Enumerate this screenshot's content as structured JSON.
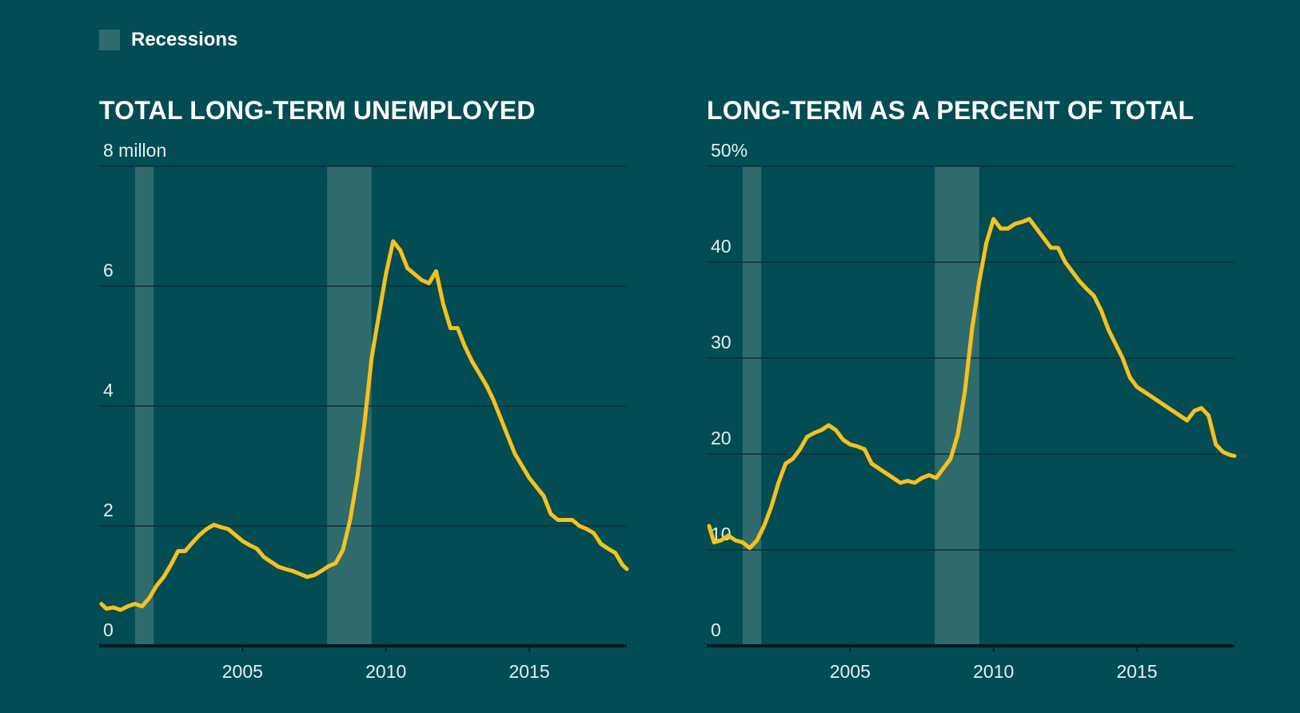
{
  "legend": {
    "label": "Recessions",
    "color": "#2f6b6d"
  },
  "colors": {
    "background": "#024c54",
    "line": "#f7c11c",
    "grid": "#0e2f33",
    "baseline": "#031a1c",
    "recession": "#2f6b6d"
  },
  "chart_data": [
    {
      "type": "line",
      "title": "TOTAL LONG-TERM UNEMPLOYED",
      "ylim": [
        0,
        8
      ],
      "xlim": [
        2000.0,
        2018.4
      ],
      "yticks": [
        0,
        2,
        4,
        6,
        8
      ],
      "ytick_labels": [
        "0",
        "2",
        "4",
        "6",
        "8 millon"
      ],
      "xticks": [
        2005,
        2010,
        2015
      ],
      "xtick_labels": [
        "2005",
        "2010",
        "2015"
      ],
      "recessions": [
        [
          2001.25,
          2001.9
        ],
        [
          2007.95,
          2009.5
        ]
      ],
      "grid": true,
      "series": [
        {
          "values": [
            [
              2000.08,
              0.7
            ],
            [
              2000.25,
              0.62
            ],
            [
              2000.5,
              0.64
            ],
            [
              2000.75,
              0.6
            ],
            [
              2001.0,
              0.66
            ],
            [
              2001.25,
              0.7
            ],
            [
              2001.5,
              0.66
            ],
            [
              2001.75,
              0.8
            ],
            [
              2002.0,
              1.0
            ],
            [
              2002.25,
              1.15
            ],
            [
              2002.5,
              1.35
            ],
            [
              2002.75,
              1.58
            ],
            [
              2003.0,
              1.58
            ],
            [
              2003.25,
              1.72
            ],
            [
              2003.5,
              1.85
            ],
            [
              2003.75,
              1.95
            ],
            [
              2004.0,
              2.02
            ],
            [
              2004.25,
              1.98
            ],
            [
              2004.5,
              1.95
            ],
            [
              2004.75,
              1.85
            ],
            [
              2005.0,
              1.75
            ],
            [
              2005.25,
              1.68
            ],
            [
              2005.5,
              1.62
            ],
            [
              2005.75,
              1.48
            ],
            [
              2006.0,
              1.4
            ],
            [
              2006.25,
              1.32
            ],
            [
              2006.5,
              1.28
            ],
            [
              2006.75,
              1.25
            ],
            [
              2007.0,
              1.2
            ],
            [
              2007.25,
              1.15
            ],
            [
              2007.5,
              1.18
            ],
            [
              2007.75,
              1.25
            ],
            [
              2008.0,
              1.33
            ],
            [
              2008.25,
              1.38
            ],
            [
              2008.5,
              1.6
            ],
            [
              2008.75,
              2.1
            ],
            [
              2009.0,
              2.8
            ],
            [
              2009.25,
              3.7
            ],
            [
              2009.5,
              4.8
            ],
            [
              2009.75,
              5.5
            ],
            [
              2010.0,
              6.2
            ],
            [
              2010.25,
              6.75
            ],
            [
              2010.5,
              6.6
            ],
            [
              2010.75,
              6.3
            ],
            [
              2011.0,
              6.2
            ],
            [
              2011.25,
              6.1
            ],
            [
              2011.5,
              6.05
            ],
            [
              2011.75,
              6.25
            ],
            [
              2012.0,
              5.7
            ],
            [
              2012.25,
              5.3
            ],
            [
              2012.5,
              5.3
            ],
            [
              2012.75,
              5.0
            ],
            [
              2013.0,
              4.75
            ],
            [
              2013.25,
              4.55
            ],
            [
              2013.5,
              4.35
            ],
            [
              2013.75,
              4.1
            ],
            [
              2014.0,
              3.8
            ],
            [
              2014.25,
              3.5
            ],
            [
              2014.5,
              3.2
            ],
            [
              2014.75,
              3.0
            ],
            [
              2015.0,
              2.8
            ],
            [
              2015.25,
              2.65
            ],
            [
              2015.5,
              2.5
            ],
            [
              2015.75,
              2.2
            ],
            [
              2016.0,
              2.1
            ],
            [
              2016.25,
              2.1
            ],
            [
              2016.5,
              2.1
            ],
            [
              2016.75,
              2.0
            ],
            [
              2017.0,
              1.95
            ],
            [
              2017.25,
              1.88
            ],
            [
              2017.5,
              1.7
            ],
            [
              2017.75,
              1.62
            ],
            [
              2018.0,
              1.55
            ],
            [
              2018.25,
              1.35
            ],
            [
              2018.4,
              1.28
            ]
          ]
        }
      ]
    },
    {
      "type": "line",
      "title": "LONG-TERM AS A PERCENT OF TOTAL",
      "ylim": [
        0,
        50
      ],
      "xlim": [
        2000.0,
        2018.4
      ],
      "yticks": [
        0,
        10,
        20,
        30,
        40,
        50
      ],
      "ytick_labels": [
        "0",
        "10",
        "20",
        "30",
        "40",
        "50%"
      ],
      "xticks": [
        2005,
        2010,
        2015
      ],
      "xtick_labels": [
        "2005",
        "2010",
        "2015"
      ],
      "recessions": [
        [
          2001.25,
          2001.9
        ],
        [
          2007.95,
          2009.5
        ]
      ],
      "grid": true,
      "series": [
        {
          "values": [
            [
              2000.08,
              12.5
            ],
            [
              2000.25,
              10.8
            ],
            [
              2000.5,
              11.0
            ],
            [
              2000.75,
              11.5
            ],
            [
              2001.0,
              11.0
            ],
            [
              2001.25,
              10.8
            ],
            [
              2001.5,
              10.2
            ],
            [
              2001.75,
              11.0
            ],
            [
              2002.0,
              12.5
            ],
            [
              2002.25,
              14.5
            ],
            [
              2002.5,
              17.0
            ],
            [
              2002.75,
              19.0
            ],
            [
              2003.0,
              19.5
            ],
            [
              2003.25,
              20.5
            ],
            [
              2003.5,
              21.8
            ],
            [
              2003.75,
              22.2
            ],
            [
              2004.0,
              22.5
            ],
            [
              2004.25,
              23.0
            ],
            [
              2004.5,
              22.5
            ],
            [
              2004.75,
              21.5
            ],
            [
              2005.0,
              21.0
            ],
            [
              2005.25,
              20.8
            ],
            [
              2005.5,
              20.5
            ],
            [
              2005.75,
              19.0
            ],
            [
              2006.0,
              18.5
            ],
            [
              2006.25,
              18.0
            ],
            [
              2006.5,
              17.5
            ],
            [
              2006.75,
              17.0
            ],
            [
              2007.0,
              17.2
            ],
            [
              2007.25,
              17.0
            ],
            [
              2007.5,
              17.5
            ],
            [
              2007.75,
              17.8
            ],
            [
              2008.0,
              17.5
            ],
            [
              2008.25,
              18.5
            ],
            [
              2008.5,
              19.5
            ],
            [
              2008.75,
              22.0
            ],
            [
              2009.0,
              26.5
            ],
            [
              2009.25,
              33.0
            ],
            [
              2009.5,
              38.0
            ],
            [
              2009.75,
              42.0
            ],
            [
              2010.0,
              44.5
            ],
            [
              2010.25,
              43.5
            ],
            [
              2010.5,
              43.5
            ],
            [
              2010.75,
              44.0
            ],
            [
              2011.0,
              44.2
            ],
            [
              2011.25,
              44.5
            ],
            [
              2011.5,
              43.5
            ],
            [
              2011.75,
              42.5
            ],
            [
              2012.0,
              41.5
            ],
            [
              2012.25,
              41.5
            ],
            [
              2012.5,
              40.0
            ],
            [
              2012.75,
              39.0
            ],
            [
              2013.0,
              38.0
            ],
            [
              2013.25,
              37.2
            ],
            [
              2013.5,
              36.5
            ],
            [
              2013.75,
              35.0
            ],
            [
              2014.0,
              33.0
            ],
            [
              2014.25,
              31.5
            ],
            [
              2014.5,
              30.0
            ],
            [
              2014.75,
              28.0
            ],
            [
              2015.0,
              27.0
            ],
            [
              2015.25,
              26.5
            ],
            [
              2015.5,
              26.0
            ],
            [
              2015.75,
              25.5
            ],
            [
              2016.0,
              25.0
            ],
            [
              2016.25,
              24.5
            ],
            [
              2016.5,
              24.0
            ],
            [
              2016.75,
              23.5
            ],
            [
              2017.0,
              24.5
            ],
            [
              2017.25,
              24.8
            ],
            [
              2017.5,
              24.0
            ],
            [
              2017.75,
              21.0
            ],
            [
              2018.0,
              20.2
            ],
            [
              2018.25,
              19.9
            ],
            [
              2018.4,
              19.8
            ]
          ]
        }
      ]
    }
  ]
}
